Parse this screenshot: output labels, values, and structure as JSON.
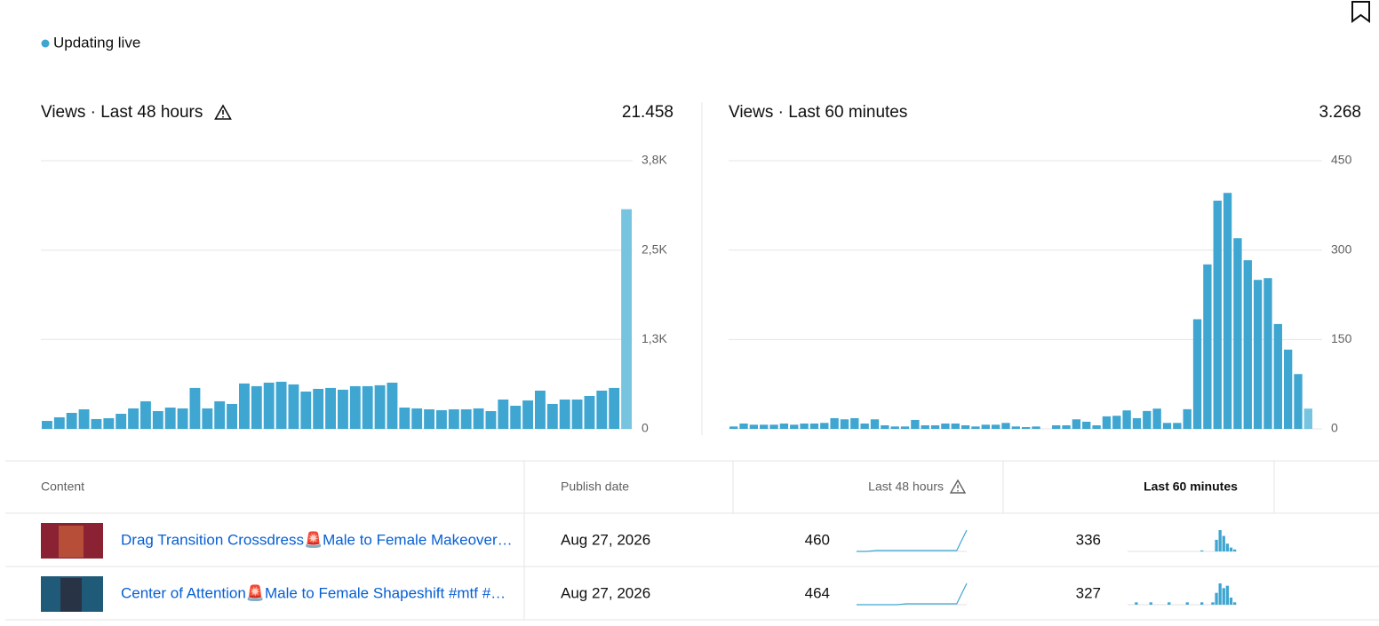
{
  "status": "Updating live",
  "chart_data": [
    {
      "type": "bar",
      "title": "Views · Last 48 hours",
      "total": "21.458",
      "values": [
        113,
        164,
        227,
        277,
        139,
        151,
        214,
        290,
        391,
        252,
        302,
        290,
        580,
        290,
        391,
        353,
        643,
        605,
        655,
        668,
        630,
        529,
        567,
        580,
        555,
        605,
        605,
        618,
        655,
        302,
        290,
        277,
        265,
        277,
        277,
        290,
        252,
        416,
        328,
        403,
        542,
        353,
        416,
        416,
        466,
        542,
        580,
        3113
      ],
      "color": "#3ea6d1",
      "last_color": "#76c4e0",
      "ylim": [
        0,
        3800
      ],
      "yticks": [
        0,
        {
          "value": 1267,
          "label": "1,3K"
        },
        {
          "value": 2533,
          "label": "2,5K"
        },
        {
          "value": 3800,
          "label": "3,8K"
        }
      ],
      "grid": true
    },
    {
      "type": "bar",
      "title": "Views · Last 60 minutes",
      "total": "3.268",
      "values": [
        4,
        9,
        7,
        7,
        7,
        9,
        7,
        9,
        9,
        10,
        18,
        16,
        18,
        9,
        16,
        6,
        4,
        4,
        15,
        6,
        6,
        9,
        9,
        6,
        4,
        7,
        7,
        10,
        4,
        3,
        4,
        0,
        6,
        6,
        16,
        12,
        6,
        21,
        22,
        31,
        18,
        30,
        34,
        10,
        10,
        33,
        184,
        276,
        383,
        396,
        320,
        283,
        250,
        253,
        176,
        133,
        92,
        34
      ],
      "color": "#3ea6d1",
      "last_color": "#76c4e0",
      "ylim": [
        0,
        450
      ],
      "yticks": [
        0,
        150,
        300,
        450
      ],
      "grid": true
    }
  ],
  "table": {
    "headers": [
      "Content",
      "Publish date",
      "Last 48 hours",
      "Last 60 minutes"
    ],
    "rows": [
      {
        "title": "Drag Transition Crossdress🚨Male to Female Makeover…",
        "date": "Aug 27, 2026",
        "views_48h": "460",
        "trend_48h": [
          0,
          0,
          1,
          1,
          1,
          1,
          1,
          1,
          1,
          1,
          1,
          24
        ],
        "views_60m": "336",
        "trend_60m": [
          0,
          0,
          0,
          0,
          0,
          0,
          0,
          0,
          0,
          0,
          0,
          0,
          0,
          0,
          0,
          0,
          0,
          0,
          0,
          0,
          1,
          0,
          0,
          0,
          12,
          22,
          16,
          8,
          4,
          2
        ]
      },
      {
        "title": "Center of Attention🚨Male to Female Shapeshift #mtf #…",
        "date": "Aug 27, 2026",
        "views_48h": "464",
        "trend_48h": [
          0,
          0,
          0,
          0,
          0,
          1,
          1,
          1,
          1,
          1,
          1,
          24
        ],
        "views_60m": "327",
        "trend_60m": [
          0,
          0,
          2,
          0,
          0,
          0,
          2,
          0,
          0,
          0,
          0,
          2,
          0,
          0,
          0,
          0,
          2,
          0,
          0,
          0,
          2,
          0,
          0,
          2,
          10,
          18,
          14,
          16,
          6,
          2
        ]
      }
    ]
  }
}
